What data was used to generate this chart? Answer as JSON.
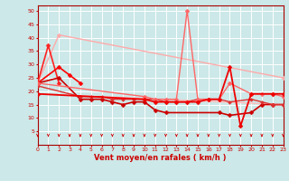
{
  "xlabel": "Vent moyen/en rafales ( km/h )",
  "xlim": [
    0,
    23
  ],
  "ylim": [
    0,
    52
  ],
  "yticks": [
    5,
    10,
    15,
    20,
    25,
    30,
    35,
    40,
    45,
    50
  ],
  "xticks": [
    0,
    1,
    2,
    3,
    4,
    5,
    6,
    7,
    8,
    9,
    10,
    11,
    12,
    13,
    14,
    15,
    16,
    17,
    18,
    19,
    20,
    21,
    22,
    23
  ],
  "bg_color": "#cce8e8",
  "grid_color": "#ffffff",
  "arrow_color": "#cc0000",
  "tick_color": "#cc0000",
  "series": [
    {
      "name": "light_diagonal1",
      "x": [
        0,
        2,
        23
      ],
      "y": [
        23,
        41,
        25
      ],
      "color": "#ffaaaa",
      "lw": 1.0,
      "marker": "D",
      "ms": 2.5,
      "connect_gaps": false
    },
    {
      "name": "light_diagonal2",
      "x": [
        0,
        23
      ],
      "y": [
        19,
        15
      ],
      "color": "#ffbbbb",
      "lw": 1.0,
      "marker": null,
      "ms": 0,
      "connect_gaps": false
    },
    {
      "name": "series_red1",
      "x": [
        0,
        1,
        2
      ],
      "y": [
        23,
        37,
        23
      ],
      "color": "#ff2222",
      "lw": 1.2,
      "marker": "D",
      "ms": 2.5,
      "connect_gaps": true
    },
    {
      "name": "series_red2",
      "x": [
        0,
        2,
        3,
        4
      ],
      "y": [
        23,
        29,
        26,
        23
      ],
      "color": "#ff0000",
      "lw": 1.2,
      "marker": "D",
      "ms": 2.5,
      "connect_gaps": true
    },
    {
      "name": "series_dark1",
      "x": [
        0,
        2,
        4,
        5,
        6,
        7,
        8,
        9,
        10,
        11,
        12,
        17,
        18,
        20,
        21,
        22,
        23
      ],
      "y": [
        23,
        25,
        17,
        17,
        17,
        16,
        15,
        16,
        16,
        13,
        12,
        12,
        11,
        12,
        15,
        15,
        15
      ],
      "color": "#cc0000",
      "lw": 1.2,
      "marker": "D",
      "ms": 2.5,
      "connect_gaps": true
    },
    {
      "name": "series_med1",
      "x": [
        0,
        4,
        5,
        6,
        7,
        8,
        9,
        10,
        11,
        12,
        13,
        14,
        15,
        16,
        17,
        18,
        20,
        21,
        22,
        23
      ],
      "y": [
        22,
        18,
        18,
        18,
        17,
        17,
        17,
        17,
        17,
        16,
        16,
        16,
        17,
        17,
        17,
        16,
        17,
        16,
        15,
        15
      ],
      "color": "#dd3333",
      "lw": 1.0,
      "marker": "D",
      "ms": 2.0,
      "connect_gaps": true
    },
    {
      "name": "series_spike",
      "x": [
        0,
        10,
        11,
        12,
        13,
        14,
        15,
        16,
        17,
        18,
        20,
        21,
        22,
        23
      ],
      "y": [
        23,
        18,
        17,
        17,
        17,
        50,
        17,
        17,
        17,
        23,
        19,
        19,
        19,
        18
      ],
      "color": "#ff6666",
      "lw": 1.0,
      "marker": "D",
      "ms": 2.5,
      "connect_gaps": true
    },
    {
      "name": "series_dip",
      "x": [
        0,
        10,
        11,
        12,
        13,
        14,
        15,
        16,
        17,
        18,
        19,
        20,
        22,
        23
      ],
      "y": [
        19,
        17,
        16,
        16,
        16,
        16,
        16,
        17,
        17,
        29,
        7,
        19,
        19,
        19
      ],
      "color": "#ee0000",
      "lw": 1.3,
      "marker": "D",
      "ms": 2.5,
      "connect_gaps": true
    }
  ]
}
